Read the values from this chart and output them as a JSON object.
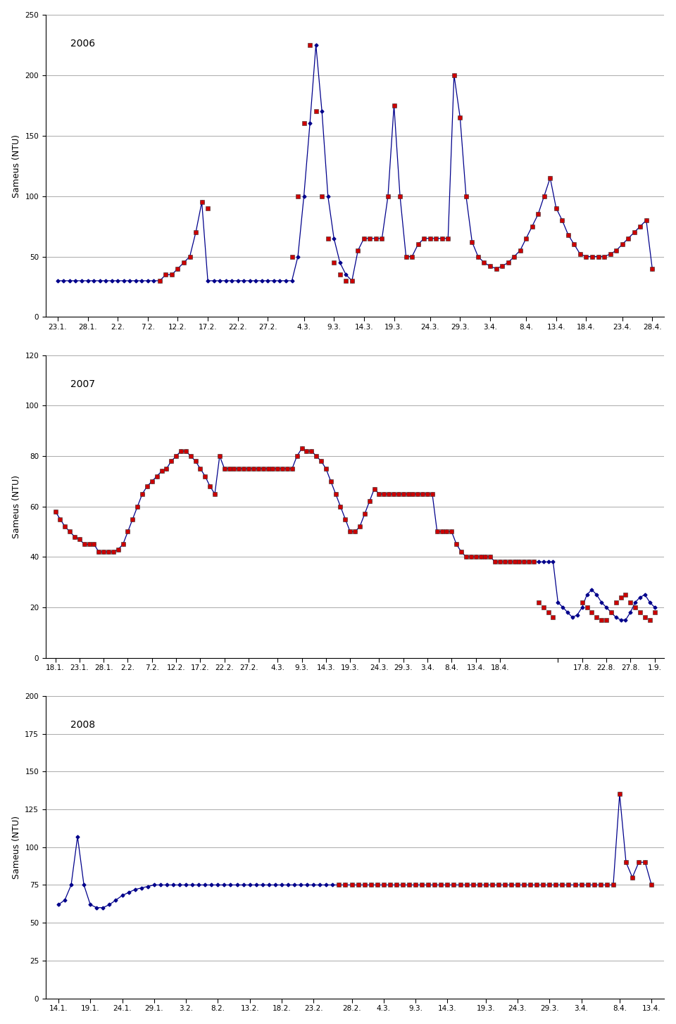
{
  "ylabel": "Sameus (NTU)",
  "background_color": "#ffffff",
  "line_color": "#00008B",
  "red_color": "#CC0000",
  "marker_blue": "D",
  "marker_red": "s",
  "marker_size_blue": 2.5,
  "marker_size_red": 4.5,
  "line_width": 0.9,
  "grid_color": "#AAAAAA",
  "axis_label_fontsize": 9,
  "tick_fontsize": 7.5,
  "year_fontsize": 10,
  "plots": [
    {
      "year": "2006",
      "ylim": [
        0,
        250
      ],
      "yticks": [
        0,
        50,
        100,
        150,
        200,
        250
      ],
      "xlabels": [
        "23.1.",
        "28.1.",
        "2.2.",
        "7.2.",
        "12.2.",
        "17.2.",
        "22.2.",
        "27.2.",
        "4.3.",
        "9.3.",
        "14.3.",
        "19.3.",
        "24.3.",
        "29.3.",
        "3.4.",
        "8.4.",
        "13.4.",
        "18.4.",
        "23.4.",
        "28.4."
      ],
      "tick_x": [
        0,
        5,
        10,
        15,
        20,
        25,
        30,
        35,
        41,
        46,
        51,
        56,
        62,
        67,
        72,
        78,
        83,
        88,
        94,
        99
      ],
      "blue_x": [
        0,
        1,
        2,
        3,
        4,
        5,
        6,
        7,
        8,
        9,
        10,
        11,
        12,
        13,
        14,
        15,
        16,
        17,
        18,
        19,
        20,
        21,
        22,
        23,
        24,
        25,
        26,
        27,
        28,
        29,
        30,
        31,
        32,
        33,
        34,
        35,
        36,
        37,
        38,
        39,
        40,
        41,
        42,
        43,
        44,
        45,
        46,
        47,
        48,
        49,
        50,
        51,
        52,
        53,
        54,
        55,
        56,
        57,
        58,
        59,
        60,
        61,
        62,
        63,
        64,
        65,
        66,
        67,
        68,
        69,
        70,
        71,
        72,
        73,
        74,
        75,
        76,
        77,
        78,
        79,
        80,
        81,
        82,
        83,
        84,
        85,
        86,
        87,
        88,
        89,
        90,
        91,
        92,
        93,
        94,
        95,
        96,
        97,
        98,
        99
      ],
      "blue_y": [
        30,
        30,
        30,
        30,
        30,
        30,
        30,
        30,
        30,
        30,
        30,
        30,
        30,
        30,
        30,
        30,
        30,
        30,
        35,
        35,
        40,
        45,
        50,
        70,
        95,
        30,
        30,
        30,
        30,
        30,
        30,
        30,
        30,
        30,
        30,
        30,
        30,
        30,
        30,
        30,
        50,
        100,
        160,
        225,
        170,
        100,
        65,
        45,
        35,
        30,
        55,
        65,
        65,
        65,
        65,
        100,
        175,
        100,
        50,
        50,
        60,
        65,
        65,
        65,
        65,
        65,
        200,
        165,
        100,
        62,
        50,
        45,
        42,
        40,
        42,
        45,
        50,
        55,
        65,
        75,
        85,
        100,
        115,
        90,
        80,
        68,
        60,
        52,
        50,
        50,
        50,
        50,
        52,
        55,
        60,
        65,
        70,
        75,
        80,
        40
      ],
      "red_x": [
        17,
        18,
        19,
        20,
        21,
        22,
        23,
        24,
        25,
        39,
        40,
        41,
        42,
        43,
        44,
        45,
        46,
        47,
        48,
        49,
        50,
        51,
        52,
        53,
        54,
        55,
        56,
        57,
        58,
        59,
        60,
        61,
        62,
        63,
        64,
        65,
        66,
        67,
        68,
        69,
        70,
        71,
        72,
        73,
        74,
        75,
        76,
        77,
        78,
        79,
        80,
        81,
        82,
        83,
        84,
        85,
        86,
        87,
        88,
        89,
        90,
        91,
        92,
        93,
        94,
        95,
        96,
        97,
        98,
        99
      ],
      "red_y": [
        30,
        35,
        35,
        40,
        45,
        50,
        70,
        95,
        90,
        50,
        100,
        160,
        225,
        170,
        100,
        65,
        45,
        35,
        30,
        30,
        55,
        65,
        65,
        65,
        65,
        100,
        175,
        100,
        50,
        50,
        60,
        65,
        65,
        65,
        65,
        65,
        200,
        165,
        100,
        62,
        50,
        45,
        42,
        40,
        42,
        45,
        50,
        55,
        65,
        75,
        85,
        100,
        115,
        90,
        80,
        68,
        60,
        52,
        50,
        50,
        50,
        50,
        52,
        55,
        60,
        65,
        70,
        75,
        80,
        40
      ]
    },
    {
      "year": "2007",
      "ylim": [
        0,
        120
      ],
      "yticks": [
        0,
        20,
        40,
        60,
        80,
        100,
        120
      ],
      "xlabels": [
        "18.1.",
        "23.1.",
        "28.1.",
        "2.2.",
        "7.2.",
        "12.2.",
        "17.2.",
        "22.2.",
        "27.2.",
        "4.3.",
        "9.3.",
        "14.3.",
        "19.3.",
        "24.3.",
        "29.3.",
        "3.4.",
        "8.4.",
        "13.4.",
        "18.4.",
        "",
        "17.8.",
        "22.8.",
        "27.8.",
        "1.9."
      ],
      "tick_x": [
        0,
        5,
        10,
        15,
        20,
        25,
        30,
        35,
        40,
        46,
        51,
        56,
        61,
        67,
        72,
        77,
        82,
        87,
        92,
        104,
        109,
        114,
        119,
        124
      ],
      "blue_x": [
        0,
        1,
        2,
        3,
        4,
        5,
        6,
        7,
        8,
        9,
        10,
        11,
        12,
        13,
        14,
        15,
        16,
        17,
        18,
        19,
        20,
        21,
        22,
        23,
        24,
        25,
        26,
        27,
        28,
        29,
        30,
        31,
        32,
        33,
        34,
        35,
        36,
        37,
        38,
        39,
        40,
        41,
        42,
        43,
        44,
        45,
        46,
        47,
        48,
        49,
        50,
        51,
        52,
        53,
        54,
        55,
        56,
        57,
        58,
        59,
        60,
        61,
        62,
        63,
        64,
        65,
        66,
        67,
        68,
        69,
        70,
        71,
        72,
        73,
        74,
        75,
        76,
        77,
        78,
        79,
        80,
        81,
        82,
        83,
        84,
        85,
        86,
        87,
        88,
        89,
        90,
        91,
        92,
        93,
        94,
        95,
        96,
        97,
        98,
        99,
        100,
        101,
        102,
        103,
        104,
        105,
        106,
        107,
        108,
        109,
        110,
        111,
        112,
        113,
        114,
        115,
        116,
        117,
        118,
        119,
        120,
        121,
        122,
        123,
        124
      ],
      "blue_y": [
        58,
        55,
        52,
        50,
        48,
        47,
        45,
        45,
        45,
        42,
        42,
        42,
        42,
        43,
        45,
        50,
        55,
        60,
        65,
        68,
        70,
        72,
        74,
        75,
        78,
        80,
        82,
        82,
        80,
        78,
        75,
        72,
        68,
        65,
        80,
        75,
        75,
        75,
        75,
        75,
        75,
        75,
        75,
        75,
        75,
        75,
        75,
        75,
        75,
        75,
        80,
        83,
        82,
        82,
        80,
        78,
        75,
        70,
        65,
        60,
        55,
        50,
        50,
        52,
        57,
        62,
        67,
        65,
        65,
        65,
        65,
        65,
        65,
        65,
        65,
        65,
        65,
        65,
        65,
        50,
        50,
        50,
        50,
        45,
        42,
        40,
        40,
        40,
        40,
        40,
        40,
        38,
        38,
        38,
        38,
        38,
        38,
        38,
        38,
        38,
        38,
        38,
        38,
        38,
        22,
        20,
        18,
        16,
        17,
        20,
        25,
        27,
        25,
        22,
        20,
        18,
        16,
        15,
        15,
        18,
        22,
        24,
        25,
        22,
        20
      ],
      "red_x": [
        0,
        1,
        2,
        3,
        4,
        5,
        6,
        7,
        8,
        9,
        10,
        11,
        12,
        13,
        14,
        15,
        16,
        17,
        18,
        19,
        20,
        21,
        22,
        23,
        24,
        25,
        26,
        27,
        28,
        29,
        30,
        31,
        32,
        33,
        34,
        35,
        36,
        37,
        38,
        39,
        40,
        41,
        42,
        43,
        44,
        45,
        46,
        47,
        48,
        49,
        50,
        51,
        52,
        53,
        54,
        55,
        56,
        57,
        58,
        59,
        60,
        61,
        62,
        63,
        64,
        65,
        66,
        67,
        68,
        69,
        70,
        71,
        72,
        73,
        74,
        75,
        76,
        77,
        78,
        79,
        80,
        81,
        82,
        83,
        84,
        85,
        86,
        87,
        88,
        89,
        90,
        91,
        92,
        93,
        94,
        95,
        96,
        97,
        98,
        99,
        100,
        101,
        102,
        103,
        109,
        110,
        111,
        112,
        113,
        114,
        115,
        116,
        117,
        118,
        119,
        120,
        121,
        122,
        123,
        124
      ],
      "red_y": [
        58,
        55,
        52,
        50,
        48,
        47,
        45,
        45,
        45,
        42,
        42,
        42,
        42,
        43,
        45,
        50,
        55,
        60,
        65,
        68,
        70,
        72,
        74,
        75,
        78,
        80,
        82,
        82,
        80,
        78,
        75,
        72,
        68,
        65,
        80,
        75,
        75,
        75,
        75,
        75,
        75,
        75,
        75,
        75,
        75,
        75,
        75,
        75,
        75,
        75,
        80,
        83,
        82,
        82,
        80,
        78,
        75,
        70,
        65,
        60,
        55,
        50,
        50,
        52,
        57,
        62,
        67,
        65,
        65,
        65,
        65,
        65,
        65,
        65,
        65,
        65,
        65,
        65,
        65,
        50,
        50,
        50,
        50,
        45,
        42,
        40,
        40,
        40,
        40,
        40,
        40,
        38,
        38,
        38,
        38,
        38,
        38,
        38,
        38,
        38,
        22,
        20,
        18,
        16,
        22,
        20,
        18,
        16,
        15,
        15,
        18,
        22,
        24,
        25,
        22,
        20,
        18,
        16,
        15,
        18
      ]
    },
    {
      "year": "2008",
      "ylim": [
        0,
        200
      ],
      "yticks": [
        0,
        25,
        50,
        75,
        100,
        125,
        150,
        175,
        200
      ],
      "xlabels": [
        "14.1.",
        "19.1.",
        "24.1.",
        "29.1.",
        "3.2.",
        "8.2.",
        "13.2.",
        "18.2.",
        "23.2.",
        "28.2.",
        "4.3.",
        "9.3.",
        "14.3.",
        "19.3.",
        "24.3.",
        "29.3.",
        "3.4.",
        "8.4.",
        "13.4."
      ],
      "tick_x": [
        0,
        5,
        10,
        15,
        20,
        25,
        30,
        35,
        40,
        46,
        51,
        56,
        61,
        67,
        72,
        77,
        82,
        88,
        93
      ],
      "blue_x": [
        0,
        1,
        2,
        3,
        4,
        5,
        6,
        7,
        8,
        9,
        10,
        11,
        12,
        13,
        14,
        15,
        16,
        17,
        18,
        19,
        20,
        21,
        22,
        23,
        24,
        25,
        26,
        27,
        28,
        29,
        30,
        31,
        32,
        33,
        34,
        35,
        36,
        37,
        38,
        39,
        40,
        41,
        42,
        43,
        44,
        45,
        46,
        47,
        48,
        49,
        50,
        51,
        52,
        53,
        54,
        55,
        56,
        57,
        58,
        59,
        60,
        61,
        62,
        63,
        64,
        65,
        66,
        67,
        68,
        69,
        70,
        71,
        72,
        73,
        74,
        75,
        76,
        77,
        78,
        79,
        80,
        81,
        82,
        83,
        84,
        85,
        86,
        87,
        88,
        89,
        90,
        91,
        92,
        93
      ],
      "blue_y": [
        62,
        65,
        75,
        107,
        75,
        62,
        60,
        60,
        62,
        65,
        68,
        70,
        72,
        73,
        74,
        75,
        75,
        75,
        75,
        75,
        75,
        75,
        75,
        75,
        75,
        75,
        75,
        75,
        75,
        75,
        75,
        75,
        75,
        75,
        75,
        75,
        75,
        75,
        75,
        75,
        75,
        75,
        75,
        75,
        75,
        75,
        75,
        75,
        75,
        75,
        75,
        75,
        75,
        75,
        75,
        75,
        75,
        75,
        75,
        75,
        75,
        75,
        75,
        75,
        75,
        75,
        75,
        75,
        75,
        75,
        75,
        75,
        75,
        75,
        75,
        75,
        75,
        75,
        75,
        75,
        75,
        75,
        75,
        75,
        75,
        75,
        75,
        75,
        135,
        90,
        80,
        90,
        90,
        75
      ],
      "red_x": [
        44,
        45,
        46,
        47,
        48,
        49,
        50,
        51,
        52,
        53,
        54,
        55,
        56,
        57,
        58,
        59,
        60,
        61,
        62,
        63,
        64,
        65,
        66,
        67,
        68,
        69,
        70,
        71,
        72,
        73,
        74,
        75,
        76,
        77,
        78,
        79,
        80,
        81,
        82,
        83,
        84,
        85,
        86,
        87,
        88,
        89,
        90,
        91,
        92,
        93
      ],
      "red_y": [
        75,
        75,
        75,
        75,
        75,
        75,
        75,
        75,
        75,
        75,
        75,
        75,
        75,
        75,
        75,
        75,
        75,
        75,
        75,
        75,
        75,
        75,
        75,
        75,
        75,
        75,
        75,
        75,
        75,
        75,
        75,
        75,
        75,
        75,
        75,
        75,
        75,
        75,
        75,
        75,
        75,
        75,
        75,
        75,
        135,
        90,
        80,
        90,
        90,
        75
      ]
    }
  ]
}
